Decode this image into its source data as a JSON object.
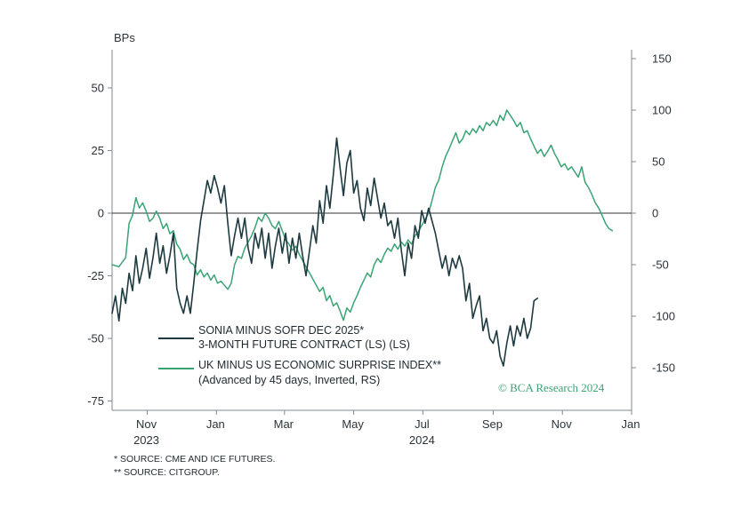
{
  "chart_data": {
    "type": "line",
    "y_unit": "BPs",
    "y_left": {
      "ticks": [
        50,
        25,
        0,
        -25,
        -50,
        -75
      ],
      "range": [
        -75,
        65
      ]
    },
    "y_right": {
      "ticks": [
        -150,
        -100,
        -50,
        0,
        50,
        100,
        150
      ],
      "range": [
        -150,
        150
      ]
    },
    "x_ticks": [
      {
        "label": "Nov",
        "year": "2023",
        "date": "2023-11-01"
      },
      {
        "label": "Jan",
        "year": "",
        "date": "2024-01-01"
      },
      {
        "label": "Mar",
        "year": "",
        "date": "2024-03-01"
      },
      {
        "label": "May",
        "year": "",
        "date": "2024-05-01"
      },
      {
        "label": "Jul",
        "year": "2024",
        "date": "2024-07-01"
      },
      {
        "label": "Sep",
        "year": "",
        "date": "2024-09-01"
      },
      {
        "label": "Nov",
        "year": "",
        "date": "2024-11-01"
      },
      {
        "label": "Jan",
        "year": "",
        "date": "2025-01-01"
      }
    ],
    "x_range": [
      "2023-10-01",
      "2025-01-01"
    ],
    "zero_line": true,
    "series": [
      {
        "name_line1": "SONIA MINUS SOFR DEC 2025*",
        "name_line2": "3-MONTH FUTURE CONTRACT (LS) (LS)",
        "axis": "left",
        "color": "#1d3a40",
        "points": [
          [
            "2023-10-01",
            -40
          ],
          [
            "2023-10-04",
            -33
          ],
          [
            "2023-10-07",
            -43
          ],
          [
            "2023-10-10",
            -30
          ],
          [
            "2023-10-13",
            -36
          ],
          [
            "2023-10-16",
            -24
          ],
          [
            "2023-10-19",
            -31
          ],
          [
            "2023-10-22",
            -17
          ],
          [
            "2023-10-25",
            -28
          ],
          [
            "2023-10-28",
            -22
          ],
          [
            "2023-10-31",
            -14
          ],
          [
            "2023-11-03",
            -26
          ],
          [
            "2023-11-06",
            -18
          ],
          [
            "2023-11-09",
            -8
          ],
          [
            "2023-11-12",
            -20
          ],
          [
            "2023-11-15",
            -13
          ],
          [
            "2023-11-18",
            -24
          ],
          [
            "2023-11-21",
            -17
          ],
          [
            "2023-11-24",
            -8
          ],
          [
            "2023-11-27",
            -30
          ],
          [
            "2023-11-30",
            -36
          ],
          [
            "2023-12-03",
            -40
          ],
          [
            "2023-12-06",
            -33
          ],
          [
            "2023-12-09",
            -40
          ],
          [
            "2023-12-12",
            -28
          ],
          [
            "2023-12-15",
            -15
          ],
          [
            "2023-12-18",
            -3
          ],
          [
            "2023-12-21",
            5
          ],
          [
            "2023-12-24",
            13
          ],
          [
            "2023-12-27",
            8
          ],
          [
            "2023-12-30",
            15
          ],
          [
            "2024-01-02",
            10
          ],
          [
            "2024-01-05",
            4
          ],
          [
            "2024-01-08",
            11
          ],
          [
            "2024-01-11",
            -4
          ],
          [
            "2024-01-14",
            -17
          ],
          [
            "2024-01-17",
            -9
          ],
          [
            "2024-01-20",
            -2
          ],
          [
            "2024-01-23",
            -10
          ],
          [
            "2024-01-26",
            -2
          ],
          [
            "2024-01-29",
            -14
          ],
          [
            "2024-02-01",
            -20
          ],
          [
            "2024-02-04",
            -8
          ],
          [
            "2024-02-07",
            -14
          ],
          [
            "2024-02-10",
            -6
          ],
          [
            "2024-02-13",
            -18
          ],
          [
            "2024-02-16",
            -8
          ],
          [
            "2024-02-19",
            -22
          ],
          [
            "2024-02-22",
            -13
          ],
          [
            "2024-02-25",
            -6
          ],
          [
            "2024-02-28",
            -16
          ],
          [
            "2024-03-02",
            -8
          ],
          [
            "2024-03-05",
            -20
          ],
          [
            "2024-03-08",
            -10
          ],
          [
            "2024-03-11",
            -18
          ],
          [
            "2024-03-14",
            -8
          ],
          [
            "2024-03-17",
            -17
          ],
          [
            "2024-03-20",
            -25
          ],
          [
            "2024-03-23",
            -15
          ],
          [
            "2024-03-26",
            -5
          ],
          [
            "2024-03-29",
            -12
          ],
          [
            "2024-04-01",
            5
          ],
          [
            "2024-04-04",
            -4
          ],
          [
            "2024-04-07",
            11
          ],
          [
            "2024-04-10",
            2
          ],
          [
            "2024-04-13",
            15
          ],
          [
            "2024-04-16",
            30
          ],
          [
            "2024-04-19",
            18
          ],
          [
            "2024-04-22",
            7
          ],
          [
            "2024-04-25",
            20
          ],
          [
            "2024-04-28",
            25
          ],
          [
            "2024-05-01",
            8
          ],
          [
            "2024-05-04",
            13
          ],
          [
            "2024-05-07",
            2
          ],
          [
            "2024-05-10",
            -3
          ],
          [
            "2024-05-13",
            10
          ],
          [
            "2024-05-16",
            3
          ],
          [
            "2024-05-19",
            14
          ],
          [
            "2024-05-22",
            6
          ],
          [
            "2024-05-25",
            -2
          ],
          [
            "2024-05-28",
            4
          ],
          [
            "2024-05-31",
            -5
          ],
          [
            "2024-06-03",
            -3
          ],
          [
            "2024-06-06",
            -10
          ],
          [
            "2024-06-09",
            -2
          ],
          [
            "2024-06-12",
            -15
          ],
          [
            "2024-06-15",
            -25
          ],
          [
            "2024-06-18",
            -12
          ],
          [
            "2024-06-21",
            -18
          ],
          [
            "2024-06-24",
            -5
          ],
          [
            "2024-06-27",
            -10
          ],
          [
            "2024-06-30",
            1
          ],
          [
            "2024-07-03",
            -4
          ],
          [
            "2024-07-06",
            2
          ],
          [
            "2024-07-09",
            -3
          ],
          [
            "2024-07-12",
            -8
          ],
          [
            "2024-07-15",
            -15
          ],
          [
            "2024-07-18",
            -22
          ],
          [
            "2024-07-21",
            -17
          ],
          [
            "2024-07-24",
            -25
          ],
          [
            "2024-07-27",
            -18
          ],
          [
            "2024-07-30",
            -22
          ],
          [
            "2024-08-02",
            -17
          ],
          [
            "2024-08-05",
            -22
          ],
          [
            "2024-08-08",
            -35
          ],
          [
            "2024-08-11",
            -28
          ],
          [
            "2024-08-14",
            -42
          ],
          [
            "2024-08-17",
            -37
          ],
          [
            "2024-08-20",
            -33
          ],
          [
            "2024-08-23",
            -47
          ],
          [
            "2024-08-26",
            -42
          ],
          [
            "2024-08-29",
            -50
          ],
          [
            "2024-09-01",
            -52
          ],
          [
            "2024-09-04",
            -47
          ],
          [
            "2024-09-07",
            -57
          ],
          [
            "2024-09-10",
            -61
          ],
          [
            "2024-09-13",
            -52
          ],
          [
            "2024-09-16",
            -45
          ],
          [
            "2024-09-19",
            -53
          ],
          [
            "2024-09-22",
            -45
          ],
          [
            "2024-09-25",
            -49
          ],
          [
            "2024-09-28",
            -42
          ],
          [
            "2024-10-01",
            -50
          ],
          [
            "2024-10-04",
            -46
          ],
          [
            "2024-10-07",
            -35
          ],
          [
            "2024-10-10",
            -34
          ]
        ]
      },
      {
        "name_line1": "UK MINUS US ECONOMIC SURPRISE INDEX**",
        "name_line2": "(Advanced by 45 days, Inverted, RS)",
        "axis": "right",
        "color": "#3aa374",
        "points": [
          [
            "2023-10-01",
            -50
          ],
          [
            "2023-10-07",
            -52
          ],
          [
            "2023-10-13",
            -43
          ],
          [
            "2023-10-16",
            -10
          ],
          [
            "2023-10-19",
            -2
          ],
          [
            "2023-10-22",
            15
          ],
          [
            "2023-10-25",
            5
          ],
          [
            "2023-10-28",
            10
          ],
          [
            "2023-10-31",
            2
          ],
          [
            "2023-11-03",
            -8
          ],
          [
            "2023-11-06",
            -5
          ],
          [
            "2023-11-09",
            2
          ],
          [
            "2023-11-12",
            -5
          ],
          [
            "2023-11-15",
            -15
          ],
          [
            "2023-11-18",
            -10
          ],
          [
            "2023-11-21",
            -20
          ],
          [
            "2023-11-24",
            -17
          ],
          [
            "2023-11-27",
            -30
          ],
          [
            "2023-11-30",
            -35
          ],
          [
            "2023-12-03",
            -45
          ],
          [
            "2023-12-06",
            -40
          ],
          [
            "2023-12-09",
            -48
          ],
          [
            "2023-12-12",
            -50
          ],
          [
            "2023-12-15",
            -60
          ],
          [
            "2023-12-18",
            -55
          ],
          [
            "2023-12-21",
            -62
          ],
          [
            "2023-12-24",
            -58
          ],
          [
            "2023-12-27",
            -65
          ],
          [
            "2023-12-30",
            -60
          ],
          [
            "2024-01-02",
            -68
          ],
          [
            "2024-01-05",
            -66
          ],
          [
            "2024-01-08",
            -70
          ],
          [
            "2024-01-11",
            -74
          ],
          [
            "2024-01-14",
            -68
          ],
          [
            "2024-01-17",
            -50
          ],
          [
            "2024-01-20",
            -42
          ],
          [
            "2024-01-23",
            -44
          ],
          [
            "2024-01-26",
            -34
          ],
          [
            "2024-01-29",
            -28
          ],
          [
            "2024-02-01",
            -22
          ],
          [
            "2024-02-04",
            -14
          ],
          [
            "2024-02-07",
            -4
          ],
          [
            "2024-02-10",
            -8
          ],
          [
            "2024-02-13",
            0
          ],
          [
            "2024-02-16",
            -5
          ],
          [
            "2024-02-19",
            -12
          ],
          [
            "2024-02-22",
            -15
          ],
          [
            "2024-02-25",
            -8
          ],
          [
            "2024-02-28",
            -17
          ],
          [
            "2024-03-02",
            -26
          ],
          [
            "2024-03-05",
            -30
          ],
          [
            "2024-03-08",
            -36
          ],
          [
            "2024-03-11",
            -32
          ],
          [
            "2024-03-14",
            -40
          ],
          [
            "2024-03-17",
            -46
          ],
          [
            "2024-03-20",
            -52
          ],
          [
            "2024-03-23",
            -58
          ],
          [
            "2024-03-26",
            -64
          ],
          [
            "2024-03-29",
            -70
          ],
          [
            "2024-04-01",
            -76
          ],
          [
            "2024-04-04",
            -72
          ],
          [
            "2024-04-07",
            -85
          ],
          [
            "2024-04-10",
            -80
          ],
          [
            "2024-04-13",
            -90
          ],
          [
            "2024-04-16",
            -87
          ],
          [
            "2024-04-19",
            -95
          ],
          [
            "2024-04-22",
            -104
          ],
          [
            "2024-04-25",
            -92
          ],
          [
            "2024-04-28",
            -96
          ],
          [
            "2024-05-01",
            -87
          ],
          [
            "2024-05-04",
            -80
          ],
          [
            "2024-05-07",
            -72
          ],
          [
            "2024-05-10",
            -65
          ],
          [
            "2024-05-13",
            -58
          ],
          [
            "2024-05-16",
            -62
          ],
          [
            "2024-05-19",
            -50
          ],
          [
            "2024-05-22",
            -44
          ],
          [
            "2024-05-25",
            -48
          ],
          [
            "2024-05-28",
            -40
          ],
          [
            "2024-05-31",
            -34
          ],
          [
            "2024-06-03",
            -37
          ],
          [
            "2024-06-06",
            -30
          ],
          [
            "2024-06-09",
            -35
          ],
          [
            "2024-06-12",
            -28
          ],
          [
            "2024-06-15",
            -32
          ],
          [
            "2024-06-18",
            -26
          ],
          [
            "2024-06-21",
            -30
          ],
          [
            "2024-06-24",
            -22
          ],
          [
            "2024-06-27",
            -18
          ],
          [
            "2024-06-30",
            -12
          ],
          [
            "2024-07-03",
            -6
          ],
          [
            "2024-07-06",
            0
          ],
          [
            "2024-07-09",
            12
          ],
          [
            "2024-07-12",
            25
          ],
          [
            "2024-07-15",
            32
          ],
          [
            "2024-07-18",
            45
          ],
          [
            "2024-07-21",
            55
          ],
          [
            "2024-07-24",
            62
          ],
          [
            "2024-07-27",
            70
          ],
          [
            "2024-07-30",
            78
          ],
          [
            "2024-08-02",
            68
          ],
          [
            "2024-08-05",
            72
          ],
          [
            "2024-08-08",
            80
          ],
          [
            "2024-08-11",
            76
          ],
          [
            "2024-08-14",
            82
          ],
          [
            "2024-08-17",
            78
          ],
          [
            "2024-08-20",
            85
          ],
          [
            "2024-08-23",
            80
          ],
          [
            "2024-08-26",
            88
          ],
          [
            "2024-08-29",
            85
          ],
          [
            "2024-09-01",
            90
          ],
          [
            "2024-09-04",
            85
          ],
          [
            "2024-09-07",
            95
          ],
          [
            "2024-09-10",
            90
          ],
          [
            "2024-09-13",
            100
          ],
          [
            "2024-09-16",
            95
          ],
          [
            "2024-09-19",
            90
          ],
          [
            "2024-09-22",
            84
          ],
          [
            "2024-09-25",
            88
          ],
          [
            "2024-09-28",
            78
          ],
          [
            "2024-10-01",
            80
          ],
          [
            "2024-10-04",
            72
          ],
          [
            "2024-10-07",
            65
          ],
          [
            "2024-10-10",
            58
          ],
          [
            "2024-10-13",
            62
          ],
          [
            "2024-10-16",
            55
          ],
          [
            "2024-10-19",
            60
          ],
          [
            "2024-10-22",
            66
          ],
          [
            "2024-10-25",
            58
          ],
          [
            "2024-10-28",
            52
          ],
          [
            "2024-10-31",
            45
          ],
          [
            "2024-11-03",
            48
          ],
          [
            "2024-11-06",
            42
          ],
          [
            "2024-11-09",
            45
          ],
          [
            "2024-11-12",
            40
          ],
          [
            "2024-11-15",
            35
          ],
          [
            "2024-11-18",
            45
          ],
          [
            "2024-11-21",
            30
          ],
          [
            "2024-11-24",
            25
          ],
          [
            "2024-11-27",
            18
          ],
          [
            "2024-11-30",
            10
          ],
          [
            "2024-12-03",
            5
          ],
          [
            "2024-12-06",
            -2
          ],
          [
            "2024-12-09",
            -10
          ],
          [
            "2024-12-12",
            -15
          ],
          [
            "2024-12-15",
            -17
          ]
        ]
      }
    ]
  },
  "brand": "© BCA Research 2024",
  "footnotes": [
    "* SOURCE: CME AND ICE FUTURES.",
    "** SOURCE: CITGROUP."
  ]
}
